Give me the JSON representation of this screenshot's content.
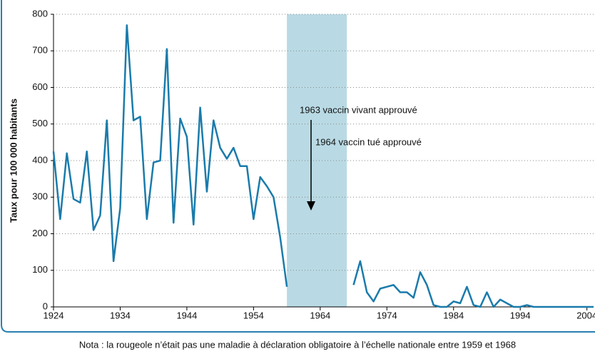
{
  "chart_data": {
    "type": "line",
    "y_label": "Taux pour 100 000 habitants",
    "note": "Nota : la rougeole n’était pas une maladie à déclaration obligatoire à l’échelle nationale entre 1959 et 1968",
    "annotations": [
      "1963 vaccin vivant approuvé",
      "1964 vaccin tué approuvé"
    ],
    "shaded_range": [
      1959,
      1968
    ],
    "shade_color": "#b9dae4",
    "x": [
      1924,
      1925,
      1926,
      1927,
      1928,
      1929,
      1930,
      1931,
      1932,
      1933,
      1934,
      1935,
      1936,
      1937,
      1938,
      1939,
      1940,
      1941,
      1942,
      1943,
      1944,
      1945,
      1946,
      1947,
      1948,
      1949,
      1950,
      1951,
      1952,
      1953,
      1954,
      1955,
      1956,
      1957,
      1958,
      1959,
      1960,
      1961,
      1962,
      1963,
      1964,
      1965,
      1966,
      1967,
      1968,
      1969,
      1970,
      1971,
      1972,
      1973,
      1974,
      1975,
      1976,
      1977,
      1978,
      1979,
      1980,
      1981,
      1982,
      1983,
      1984,
      1985,
      1986,
      1987,
      1988,
      1989,
      1990,
      1991,
      1992,
      1993,
      1994,
      1995,
      1996,
      1997,
      1998,
      1999,
      2000,
      2001,
      2002,
      2003,
      2004,
      2005
    ],
    "series": [
      {
        "color": "#1a7bab",
        "values": [
          425,
          240,
          420,
          295,
          285,
          425,
          210,
          250,
          510,
          125,
          270,
          770,
          510,
          520,
          240,
          395,
          400,
          705,
          230,
          515,
          465,
          225,
          545,
          315,
          510,
          435,
          405,
          435,
          385,
          385,
          240,
          355,
          330,
          300,
          190,
          55,
          null,
          null,
          null,
          null,
          null,
          null,
          null,
          null,
          null,
          60,
          125,
          40,
          15,
          50,
          55,
          60,
          40,
          40,
          25,
          95,
          60,
          5,
          0,
          0,
          15,
          10,
          55,
          5,
          0,
          40,
          0,
          20,
          10,
          0,
          0,
          5,
          0,
          0,
          0,
          0,
          0,
          0,
          0,
          0,
          0,
          0
        ]
      }
    ],
    "xlim": [
      1924,
      2005
    ],
    "xticks": [
      1924,
      1934,
      1944,
      1954,
      1964,
      1974,
      1984,
      1994,
      2004
    ],
    "ylim": [
      0,
      800
    ],
    "yticks": [
      0,
      100,
      200,
      300,
      400,
      500,
      600,
      700,
      800
    ],
    "grid": true
  }
}
